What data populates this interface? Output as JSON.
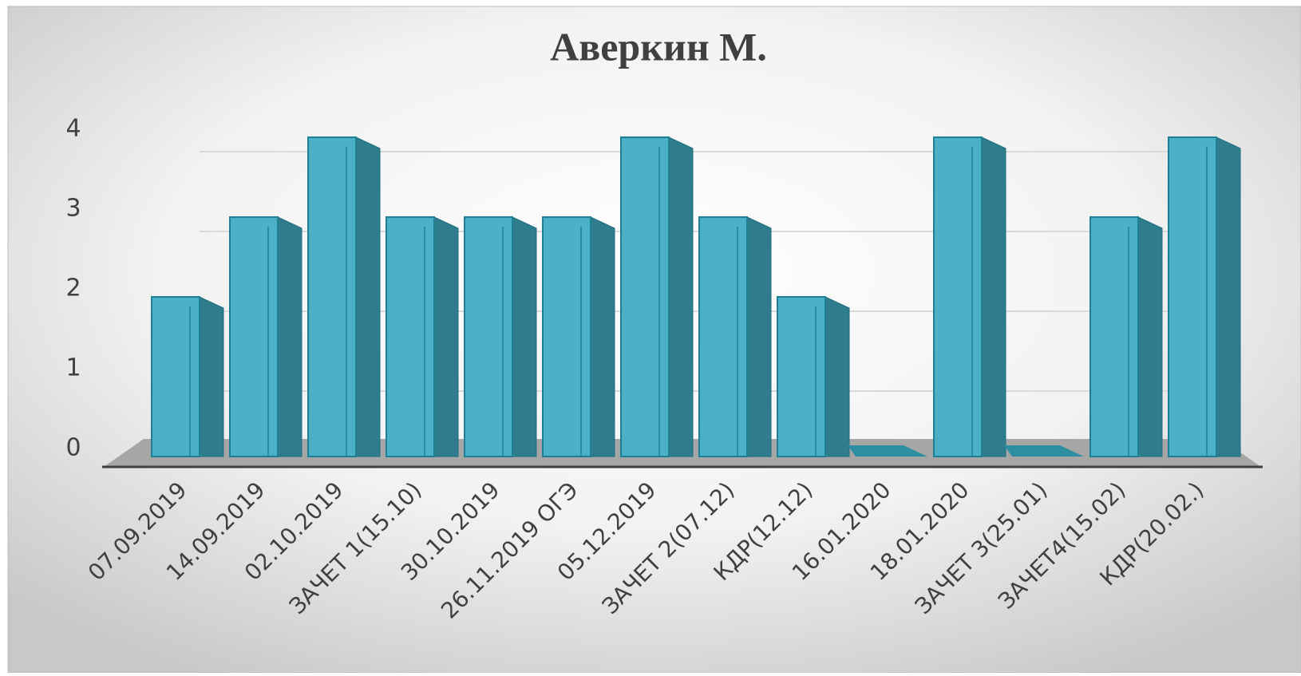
{
  "chart_data": {
    "type": "bar3d",
    "title": "Аверкин М.",
    "categories": [
      "07.09.2019",
      "14.09.2019",
      "02.10.2019",
      "ЗАЧЕТ 1(15.10)",
      "30.10.2019",
      "26.11.2019 ОГЭ",
      "05.12.2019",
      "ЗАЧЕТ 2(07.12)",
      "КДР(12.12)",
      "16.01.2020",
      "18.01.2020",
      "ЗАЧЕТ 3(25.01)",
      "ЗАЧЕТ4(15.02)",
      "КДР(20.02.)"
    ],
    "values": [
      2,
      3,
      4,
      3,
      3,
      3,
      4,
      3,
      2,
      0,
      4,
      0,
      3,
      4
    ],
    "color": "#4bb0c8",
    "ylim": [
      0,
      4
    ],
    "yticks": [
      0,
      1,
      2,
      3,
      4
    ],
    "grid": true
  }
}
